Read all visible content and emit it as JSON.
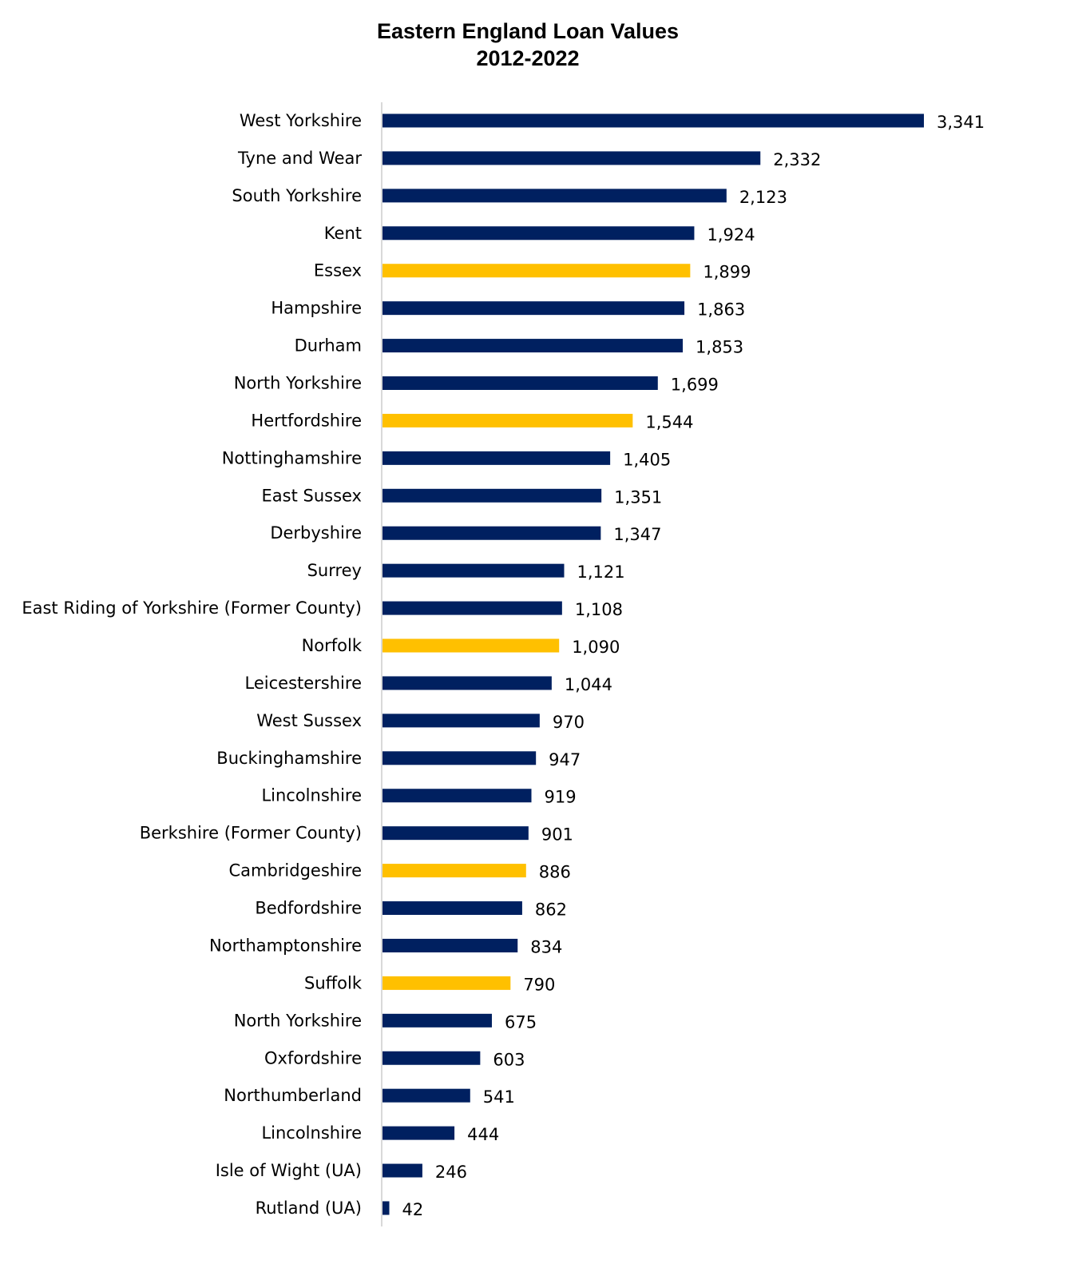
{
  "chart_data": {
    "type": "bar",
    "orientation": "horizontal",
    "title": [
      "Eastern England Loan Values",
      "2012-2022"
    ],
    "xlabel": "",
    "ylabel": "",
    "grid": false,
    "categories": [
      "West Yorkshire",
      "Tyne and Wear",
      "South Yorkshire",
      "Kent",
      "Essex",
      "Hampshire",
      "Durham",
      "North Yorkshire",
      "Hertfordshire",
      "Nottinghamshire",
      "East Sussex",
      "Derbyshire",
      "Surrey",
      "East Riding of Yorkshire (Former County)",
      "Norfolk",
      "Leicestershire",
      "West Sussex",
      "Buckinghamshire",
      "Lincolnshire",
      "Berkshire (Former County)",
      "Cambridgeshire",
      "Bedfordshire",
      "Northamptonshire",
      "Suffolk",
      "North Yorkshire",
      "Oxfordshire",
      "Northumberland",
      "Lincolnshire",
      "Isle of Wight (UA)",
      "Rutland (UA)"
    ],
    "values": [
      3341,
      2332,
      2123,
      1924,
      1899,
      1863,
      1853,
      1699,
      1544,
      1405,
      1351,
      1347,
      1121,
      1108,
      1090,
      1044,
      970,
      947,
      919,
      901,
      886,
      862,
      834,
      790,
      675,
      603,
      541,
      444,
      246,
      42
    ],
    "data_labels": [
      "3,341",
      "2,332",
      "2,123",
      "1,924",
      "1,899",
      "1,863",
      "1,853",
      "1,699",
      "1,544",
      "1,405",
      "1,351",
      "1,347",
      "1,121",
      "1,108",
      "1,090",
      "1,044",
      "970",
      "947",
      "919",
      "901",
      "886",
      "862",
      "834",
      "790",
      "675",
      "603",
      "541",
      "444",
      "246",
      "42"
    ],
    "highlighted": [
      "Essex",
      "Hertfordshire",
      "Norfolk",
      "Cambridgeshire",
      "Suffolk"
    ],
    "colors": {
      "default": "#002060",
      "highlight": "#FFC000",
      "axis": "#D9D9D9"
    }
  }
}
